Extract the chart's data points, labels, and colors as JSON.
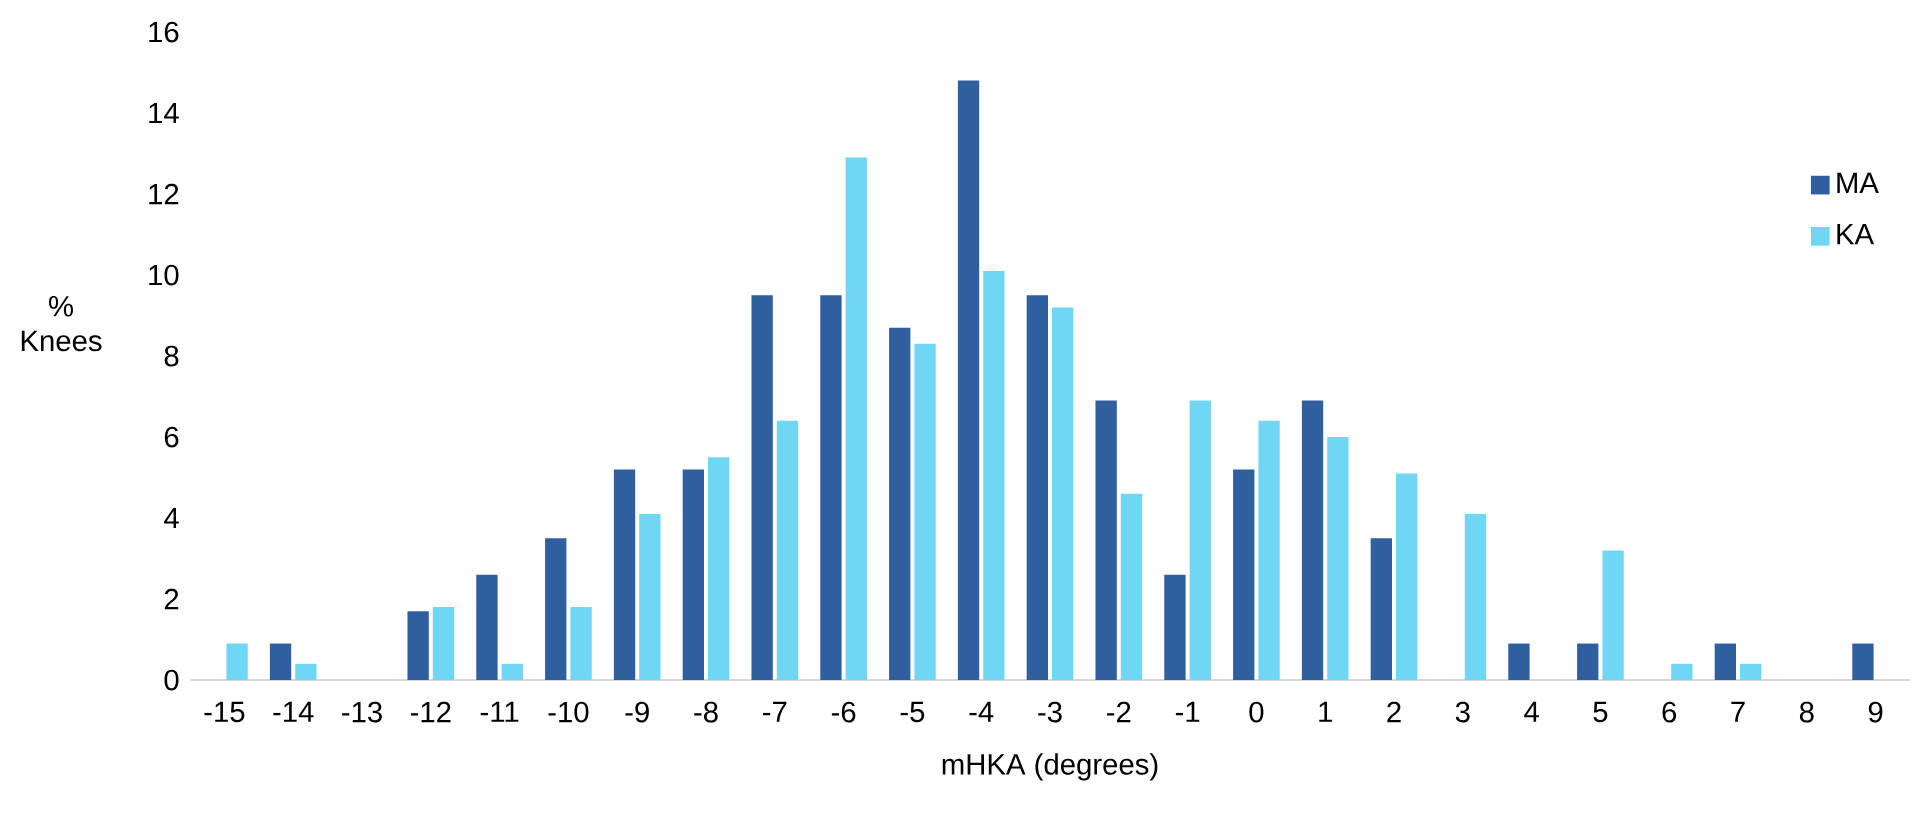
{
  "chart_data": {
    "type": "bar",
    "xlabel": "mHKA (degrees)",
    "ylabel": "% Knees",
    "categories": [
      "-15",
      "-14",
      "-13",
      "-12",
      "-11",
      "-10",
      "-9",
      "-8",
      "-7",
      "-6",
      "-5",
      "-4",
      "-3",
      "-2",
      "-1",
      "0",
      "1",
      "2",
      "3",
      "4",
      "5",
      "6",
      "7",
      "8",
      "9"
    ],
    "series": [
      {
        "name": "MA",
        "color": "#2f5f9f",
        "values": [
          0,
          0.9,
          0,
          1.7,
          2.6,
          3.5,
          5.2,
          5.2,
          9.5,
          9.5,
          8.7,
          14.8,
          9.5,
          6.9,
          2.6,
          5.2,
          6.9,
          3.5,
          0,
          0.9,
          0.9,
          0,
          0.9,
          0,
          0.9
        ]
      },
      {
        "name": "KA",
        "color": "#6fd6f4",
        "values": [
          0.9,
          0.4,
          0,
          1.8,
          0.4,
          1.8,
          4.1,
          5.5,
          6.4,
          12.9,
          8.3,
          10.1,
          9.2,
          4.6,
          6.9,
          6.4,
          6.0,
          5.1,
          4.1,
          0,
          3.2,
          0.4,
          0.4,
          0,
          0
        ]
      }
    ],
    "ylim": [
      0,
      16
    ],
    "yticks": [
      0,
      2,
      4,
      6,
      8,
      10,
      12,
      14,
      16
    ],
    "legend": "top right"
  }
}
